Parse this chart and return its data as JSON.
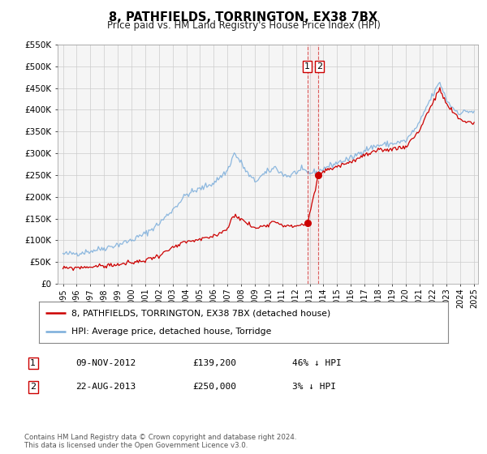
{
  "title": "8, PATHFIELDS, TORRINGTON, EX38 7BX",
  "subtitle": "Price paid vs. HM Land Registry's House Price Index (HPI)",
  "legend_label_red": "8, PATHFIELDS, TORRINGTON, EX38 7BX (detached house)",
  "legend_label_blue": "HPI: Average price, detached house, Torridge",
  "annotation1_date": "09-NOV-2012",
  "annotation1_price": "£139,200",
  "annotation1_hpi": "46% ↓ HPI",
  "annotation2_date": "22-AUG-2013",
  "annotation2_price": "£250,000",
  "annotation2_hpi": "3% ↓ HPI",
  "footer": "Contains HM Land Registry data © Crown copyright and database right 2024.\nThis data is licensed under the Open Government Licence v3.0.",
  "red_color": "#cc0000",
  "blue_color": "#7aaddb",
  "background_color": "#ffffff",
  "grid_color": "#cccccc",
  "ylim": [
    0,
    550000
  ],
  "yticks": [
    0,
    50000,
    100000,
    150000,
    200000,
    250000,
    300000,
    350000,
    400000,
    450000,
    500000,
    550000
  ],
  "ytick_labels": [
    "£0",
    "£50K",
    "£100K",
    "£150K",
    "£200K",
    "£250K",
    "£300K",
    "£350K",
    "£400K",
    "£450K",
    "£500K",
    "£550K"
  ],
  "sale1_x": 2012.86,
  "sale1_price": 139200,
  "sale2_x": 2013.64,
  "sale2_price": 250000,
  "hpi_anchors_x": [
    1995.0,
    1996.0,
    1997.0,
    1998.0,
    1999.0,
    2000.0,
    2001.0,
    2002.0,
    2003.0,
    2004.0,
    2005.0,
    2006.0,
    2007.0,
    2007.5,
    2008.0,
    2008.5,
    2009.0,
    2009.5,
    2010.0,
    2010.5,
    2011.0,
    2011.5,
    2012.0,
    2012.5,
    2013.0,
    2013.64,
    2014.0,
    2015.0,
    2016.0,
    2017.0,
    2018.0,
    2019.0,
    2020.0,
    2021.0,
    2021.5,
    2022.0,
    2022.5,
    2023.0,
    2023.5,
    2024.0,
    2024.5,
    2025.0
  ],
  "hpi_anchors_y": [
    68000,
    70000,
    75000,
    82000,
    90000,
    100000,
    115000,
    138000,
    170000,
    205000,
    218000,
    232000,
    260000,
    300000,
    278000,
    252000,
    235000,
    248000,
    258000,
    268000,
    252000,
    247000,
    257000,
    260000,
    255000,
    257000,
    265000,
    278000,
    288000,
    308000,
    318000,
    322000,
    328000,
    368000,
    405000,
    435000,
    463000,
    422000,
    402000,
    392000,
    397000,
    395000
  ],
  "red_anchors_x": [
    1995.0,
    1996.0,
    1997.0,
    1998.0,
    1999.0,
    2000.0,
    2001.0,
    2002.0,
    2003.0,
    2004.0,
    2005.0,
    2006.0,
    2007.0,
    2007.5,
    2008.0,
    2008.5,
    2009.0,
    2009.5,
    2010.0,
    2010.5,
    2011.0,
    2011.5,
    2012.0,
    2012.86,
    2013.64,
    2014.0,
    2015.0,
    2016.0,
    2017.0,
    2018.0,
    2019.0,
    2020.0,
    2021.0,
    2021.5,
    2022.0,
    2022.5,
    2023.0,
    2023.5,
    2024.0,
    2024.5,
    2025.0
  ],
  "red_anchors_y": [
    35000,
    37000,
    39000,
    41000,
    44000,
    48000,
    54000,
    65000,
    82000,
    96000,
    101000,
    109000,
    127000,
    160000,
    148000,
    138000,
    127000,
    132000,
    138000,
    144000,
    136000,
    131000,
    133000,
    139200,
    250000,
    258000,
    270000,
    280000,
    295000,
    305000,
    310000,
    315000,
    352000,
    387000,
    417000,
    447000,
    412000,
    392000,
    377000,
    372000,
    370000
  ]
}
